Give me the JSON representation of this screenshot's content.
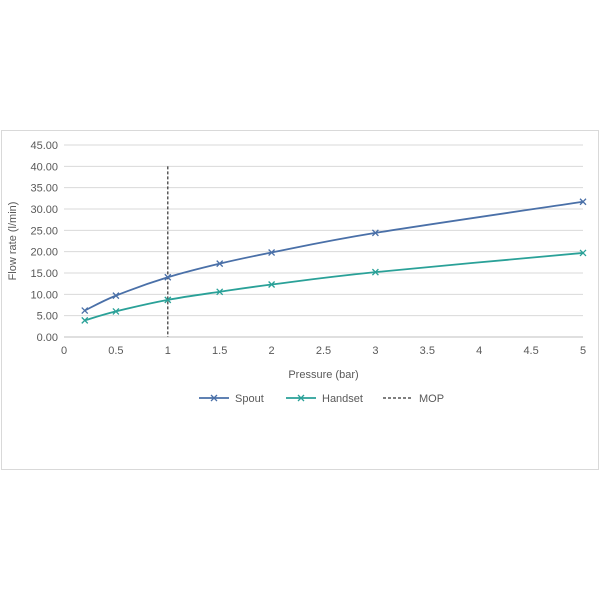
{
  "chart_data": {
    "type": "line",
    "title": "",
    "xlabel": "Pressure (bar)",
    "ylabel": "Flow rate (l/min)",
    "xlim": [
      0,
      5
    ],
    "ylim": [
      0,
      45
    ],
    "x_ticks": [
      "0",
      "0.5",
      "1",
      "1.5",
      "2",
      "2.5",
      "3",
      "3.5",
      "4",
      "4.5",
      "5"
    ],
    "x_tick_values": [
      0,
      0.5,
      1,
      1.5,
      2,
      2.5,
      3,
      3.5,
      4,
      4.5,
      5
    ],
    "y_ticks": [
      "0.00",
      "5.00",
      "10.00",
      "15.00",
      "20.00",
      "25.00",
      "30.00",
      "35.00",
      "40.00",
      "45.00"
    ],
    "y_tick_values": [
      0,
      5,
      10,
      15,
      20,
      25,
      30,
      35,
      40,
      45
    ],
    "grid": "horizontal",
    "legend_position": "bottom",
    "series": [
      {
        "name": "Spout",
        "color": "#4a70a8",
        "marker": "x",
        "points": [
          [
            0.2,
            6.2
          ],
          [
            0.5,
            9.7
          ],
          [
            1,
            14.0
          ],
          [
            1.5,
            17.2
          ],
          [
            2,
            19.8
          ],
          [
            3,
            24.4
          ],
          [
            5,
            31.7
          ]
        ]
      },
      {
        "name": "Handset",
        "color": "#2aa198",
        "marker": "x",
        "points": [
          [
            0.2,
            3.9
          ],
          [
            0.5,
            6.0
          ],
          [
            1,
            8.7
          ],
          [
            1.5,
            10.6
          ],
          [
            2,
            12.3
          ],
          [
            3,
            15.2
          ],
          [
            5,
            19.7
          ]
        ]
      }
    ],
    "reference_lines": [
      {
        "name": "MOP",
        "x": 1,
        "y_range": [
          0,
          40
        ],
        "color": "#333333",
        "style": "dashed"
      }
    ]
  }
}
